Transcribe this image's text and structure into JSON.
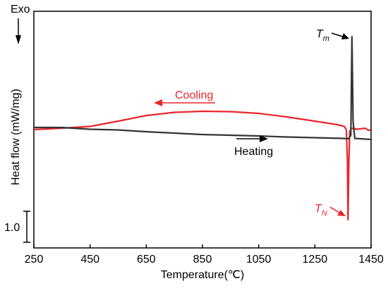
{
  "chart_data": {
    "type": "line",
    "xlabel": "Temperature(℃)",
    "ylabel": "Heat flow (mW/mg)",
    "xlim": [
      250,
      1450
    ],
    "x_ticks": [
      250,
      450,
      650,
      850,
      1050,
      1250,
      1450
    ],
    "exo_label": "Exo",
    "scale_bar_label": "1.0",
    "grid": false,
    "series": [
      {
        "name": "Cooling",
        "color": "#e8262b",
        "points": [
          [
            250,
            -0.04
          ],
          [
            350,
            0.0
          ],
          [
            450,
            0.05
          ],
          [
            550,
            0.2
          ],
          [
            650,
            0.36
          ],
          [
            750,
            0.45
          ],
          [
            850,
            0.48
          ],
          [
            950,
            0.47
          ],
          [
            1050,
            0.42
          ],
          [
            1150,
            0.32
          ],
          [
            1250,
            0.2
          ],
          [
            1330,
            0.1
          ],
          [
            1355,
            0.05
          ],
          [
            1362,
            -0.05
          ],
          [
            1366,
            -0.9
          ],
          [
            1368,
            -2.6
          ],
          [
            1371,
            -1.0
          ],
          [
            1374,
            -0.1
          ],
          [
            1380,
            0.0
          ],
          [
            1400,
            -0.03
          ],
          [
            1430,
            0.0
          ],
          [
            1440,
            -0.06
          ],
          [
            1448,
            -0.05
          ]
        ]
      },
      {
        "name": "Heating",
        "color": "#333333",
        "points": [
          [
            250,
            0.02
          ],
          [
            350,
            0.02
          ],
          [
            450,
            -0.03
          ],
          [
            550,
            -0.05
          ],
          [
            650,
            -0.1
          ],
          [
            750,
            -0.14
          ],
          [
            850,
            -0.18
          ],
          [
            950,
            -0.2
          ],
          [
            1050,
            -0.22
          ],
          [
            1150,
            -0.25
          ],
          [
            1250,
            -0.27
          ],
          [
            1350,
            -0.29
          ],
          [
            1370,
            -0.3
          ],
          [
            1378,
            -0.2
          ],
          [
            1382,
            2.6
          ],
          [
            1386,
            0.2
          ],
          [
            1392,
            -0.29
          ],
          [
            1450,
            -0.32
          ]
        ]
      }
    ],
    "annotations": {
      "cooling_label": "Cooling",
      "heating_label": "Heating",
      "tm_main": "T",
      "tm_sub": "m",
      "tn_main": "T",
      "tn_sub": "N"
    }
  }
}
